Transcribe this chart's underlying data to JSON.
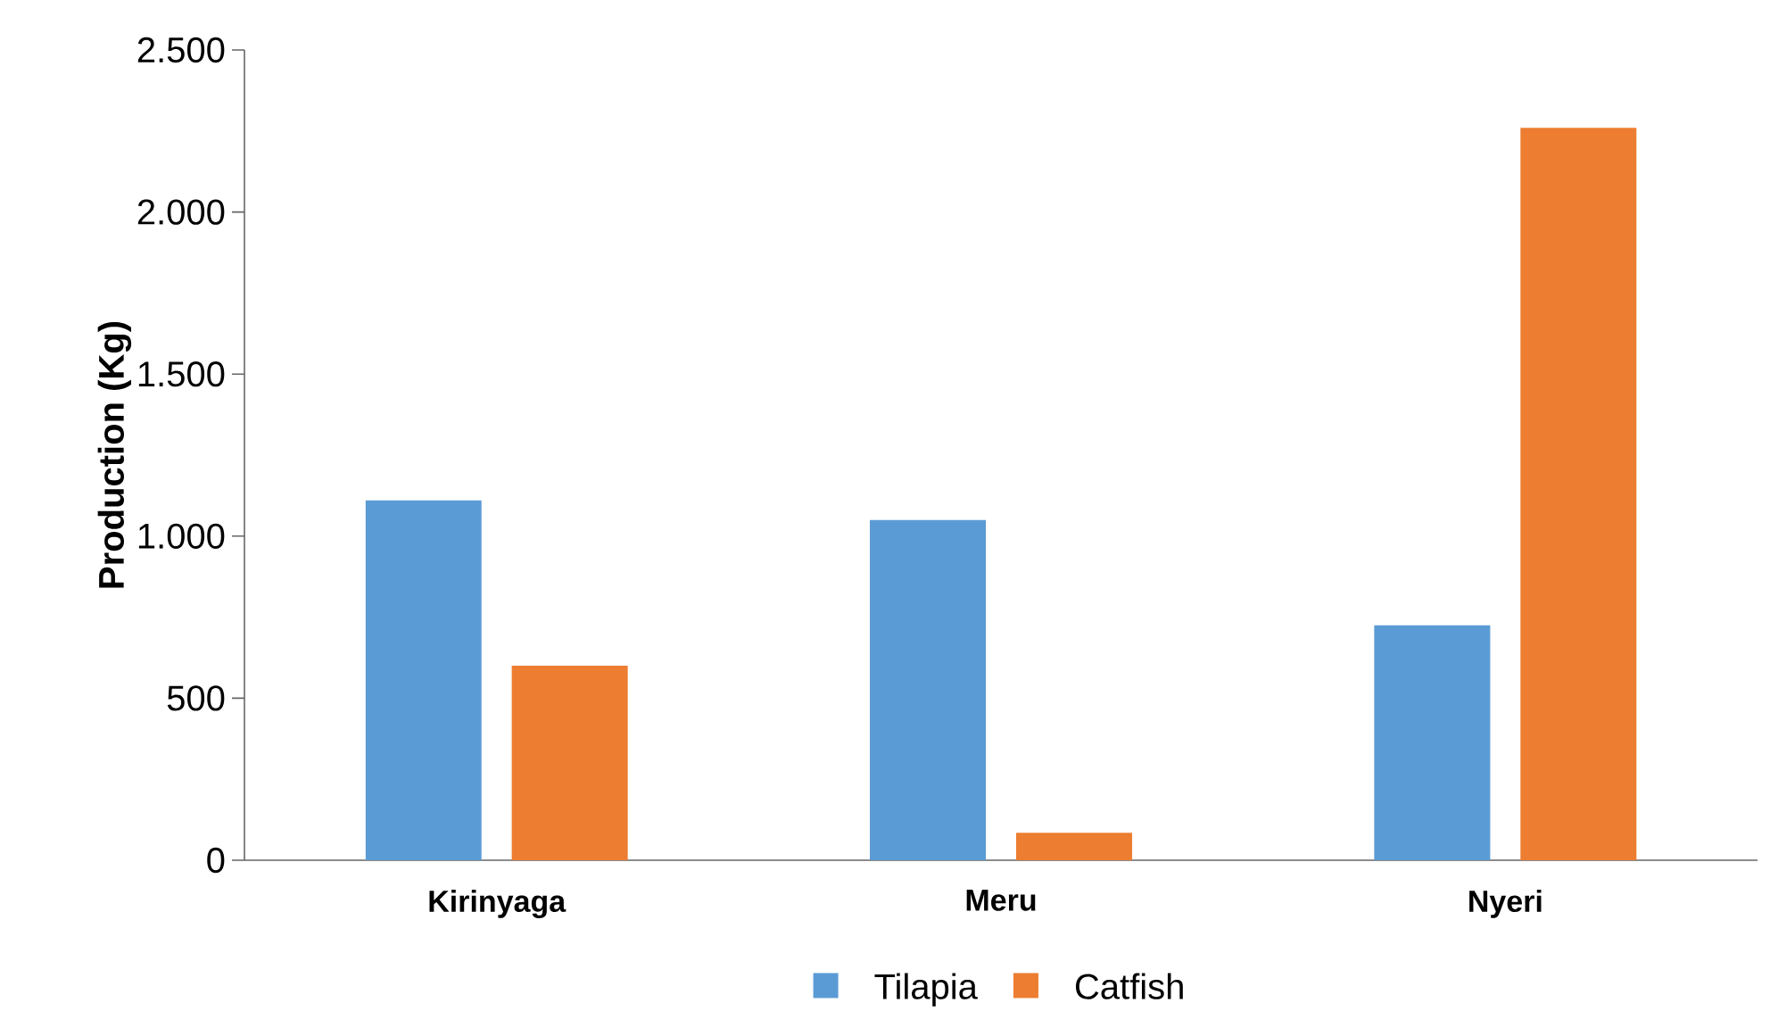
{
  "chart_data": {
    "type": "bar",
    "ylabel": "Production (Kg)",
    "categories": [
      "Kirinyaga",
      "Meru",
      "Nyeri"
    ],
    "series": [
      {
        "name": "Tilapia",
        "color": "#5b9bd5",
        "values": [
          1110,
          1050,
          725
        ]
      },
      {
        "name": "Catfish",
        "color": "#ed7d31",
        "values": [
          600,
          85,
          2260
        ]
      }
    ],
    "ylim": [
      0,
      2500
    ],
    "yticks": [
      0,
      {
        "value": 500,
        "label": "500"
      },
      {
        "value": 1000,
        "label": "1.000"
      },
      {
        "value": 1500,
        "label": "1.500"
      },
      {
        "value": 2000,
        "label": "2.000"
      },
      {
        "value": 2500,
        "label": "2.500"
      }
    ],
    "grid": false,
    "legend": "bottom"
  }
}
